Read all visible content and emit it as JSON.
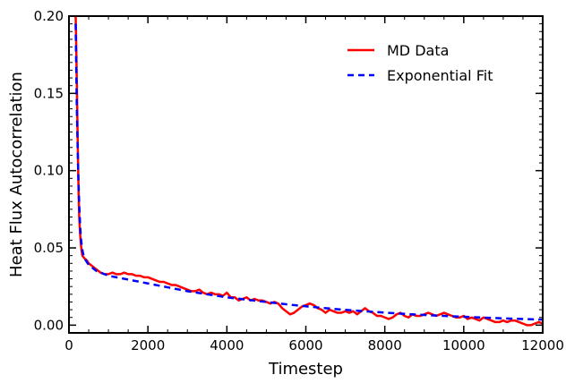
{
  "chart_data": {
    "type": "line",
    "title": "",
    "xlabel": "Timestep",
    "ylabel": "Heat Flux Autocorrelation",
    "xlim": [
      0,
      12000
    ],
    "ylim": [
      -0.005,
      0.2
    ],
    "xticks": [
      0,
      2000,
      4000,
      6000,
      8000,
      10000,
      12000
    ],
    "xtick_labels": [
      "0",
      "2000",
      "4000",
      "6000",
      "8000",
      "10000",
      "12000"
    ],
    "yticks": [
      0.0,
      0.05,
      0.1,
      0.15,
      0.2
    ],
    "ytick_labels": [
      "0.00",
      "0.05",
      "0.10",
      "0.15",
      "0.20"
    ],
    "grid": false,
    "legend_position": "top-right",
    "series": [
      {
        "name": "MD Data",
        "style": "solid",
        "color": "#ff0000",
        "x": [
          170,
          185,
          200,
          215,
          230,
          245,
          260,
          280,
          300,
          320,
          340,
          370,
          400,
          450,
          500,
          600,
          700,
          800,
          900,
          1000,
          1100,
          1200,
          1300,
          1400,
          1500,
          1600,
          1700,
          1800,
          1900,
          2000,
          2100,
          2200,
          2300,
          2400,
          2500,
          2600,
          2700,
          2800,
          2900,
          3000,
          3100,
          3200,
          3300,
          3400,
          3500,
          3600,
          3700,
          3800,
          3900,
          4000,
          4100,
          4200,
          4300,
          4400,
          4500,
          4600,
          4700,
          4800,
          4900,
          5000,
          5100,
          5200,
          5300,
          5400,
          5500,
          5600,
          5700,
          5800,
          5900,
          6000,
          6100,
          6200,
          6300,
          6400,
          6500,
          6600,
          6700,
          6800,
          6900,
          7000,
          7100,
          7200,
          7300,
          7400,
          7500,
          7600,
          7700,
          7800,
          7900,
          8000,
          8100,
          8200,
          8300,
          8400,
          8500,
          8600,
          8700,
          8800,
          8900,
          9000,
          9100,
          9200,
          9300,
          9400,
          9500,
          9600,
          9700,
          9800,
          9900,
          10000,
          10100,
          10200,
          10300,
          10400,
          10500,
          10600,
          10700,
          10800,
          10900,
          11000,
          11100,
          11200,
          11300,
          11400,
          11500,
          11600,
          11700,
          11800,
          11900,
          12000
        ],
        "y": [
          0.2,
          0.18,
          0.155,
          0.13,
          0.105,
          0.085,
          0.07,
          0.06,
          0.053,
          0.048,
          0.045,
          0.044,
          0.043,
          0.042,
          0.04,
          0.038,
          0.036,
          0.034,
          0.033,
          0.033,
          0.034,
          0.033,
          0.033,
          0.034,
          0.033,
          0.033,
          0.032,
          0.032,
          0.031,
          0.031,
          0.03,
          0.029,
          0.028,
          0.028,
          0.027,
          0.026,
          0.026,
          0.025,
          0.024,
          0.023,
          0.022,
          0.022,
          0.023,
          0.021,
          0.02,
          0.021,
          0.02,
          0.02,
          0.019,
          0.021,
          0.018,
          0.018,
          0.016,
          0.017,
          0.018,
          0.016,
          0.017,
          0.016,
          0.016,
          0.015,
          0.014,
          0.015,
          0.014,
          0.011,
          0.009,
          0.007,
          0.008,
          0.01,
          0.012,
          0.013,
          0.014,
          0.013,
          0.011,
          0.01,
          0.008,
          0.01,
          0.009,
          0.008,
          0.008,
          0.009,
          0.008,
          0.009,
          0.007,
          0.009,
          0.011,
          0.009,
          0.008,
          0.006,
          0.006,
          0.005,
          0.004,
          0.005,
          0.007,
          0.008,
          0.006,
          0.005,
          0.007,
          0.006,
          0.006,
          0.007,
          0.008,
          0.007,
          0.006,
          0.007,
          0.008,
          0.007,
          0.006,
          0.005,
          0.005,
          0.006,
          0.004,
          0.005,
          0.004,
          0.003,
          0.005,
          0.004,
          0.003,
          0.002,
          0.002,
          0.003,
          0.002,
          0.003,
          0.003,
          0.002,
          0.001,
          0.0,
          0.0,
          0.001,
          0.002,
          0.001
        ]
      },
      {
        "name": "Exponential Fit",
        "style": "dashed",
        "color": "#0000ff",
        "x": [
          170,
          185,
          200,
          220,
          240,
          260,
          280,
          300,
          330,
          360,
          400,
          450,
          500,
          600,
          700,
          800,
          900,
          1000,
          1500,
          2000,
          2500,
          3000,
          3500,
          4000,
          4500,
          5000,
          5500,
          6000,
          6500,
          7000,
          7500,
          8000,
          8500,
          9000,
          9500,
          10000,
          10500,
          11000,
          11500,
          12000
        ],
        "y": [
          0.195,
          0.165,
          0.14,
          0.115,
          0.094,
          0.078,
          0.066,
          0.057,
          0.05,
          0.046,
          0.043,
          0.041,
          0.039,
          0.037,
          0.035,
          0.034,
          0.033,
          0.032,
          0.0295,
          0.027,
          0.0245,
          0.022,
          0.02,
          0.018,
          0.0165,
          0.015,
          0.0135,
          0.0122,
          0.011,
          0.0099,
          0.009,
          0.0081,
          0.0073,
          0.0066,
          0.006,
          0.0054,
          0.0049,
          0.0044,
          0.004,
          0.0036
        ]
      }
    ]
  }
}
